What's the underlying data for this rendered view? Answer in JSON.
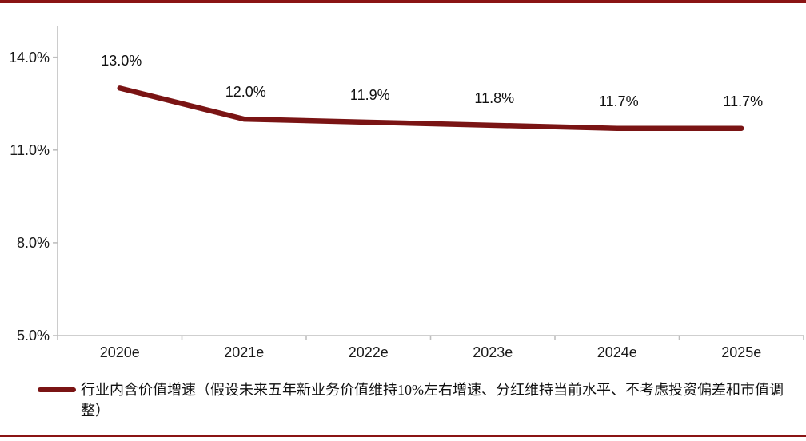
{
  "page": {
    "background": "#ffffff",
    "accent_color": "#7A1414",
    "rule_color": "#8A1414",
    "axis_color": "#BFBFBF",
    "text_color": "#1A1A1A"
  },
  "chart_data": {
    "type": "line",
    "title": "",
    "xlabel": "",
    "ylabel": "",
    "categories": [
      "2020e",
      "2021e",
      "2022e",
      "2023e",
      "2024e",
      "2025e"
    ],
    "series": [
      {
        "name": "行业内含价值增速（假设未来五年新业务价值维持10%左右增速、分红维持当前水平、不考虑投资偏差和市值调整）",
        "values": [
          13.0,
          12.0,
          11.9,
          11.8,
          11.7,
          11.7
        ],
        "color": "#7A1414",
        "data_labels": [
          "13.0%",
          "12.0%",
          "11.9%",
          "11.8%",
          "11.7%",
          "11.7%"
        ]
      }
    ],
    "yticks": [
      {
        "value": 5,
        "label": "5.0%"
      },
      {
        "value": 8,
        "label": "8.0%"
      },
      {
        "value": 11,
        "label": "11.0%"
      },
      {
        "value": 14,
        "label": "14.0%"
      }
    ],
    "ylim": [
      5,
      15
    ],
    "grid": false,
    "legend_position": "bottom-left"
  }
}
